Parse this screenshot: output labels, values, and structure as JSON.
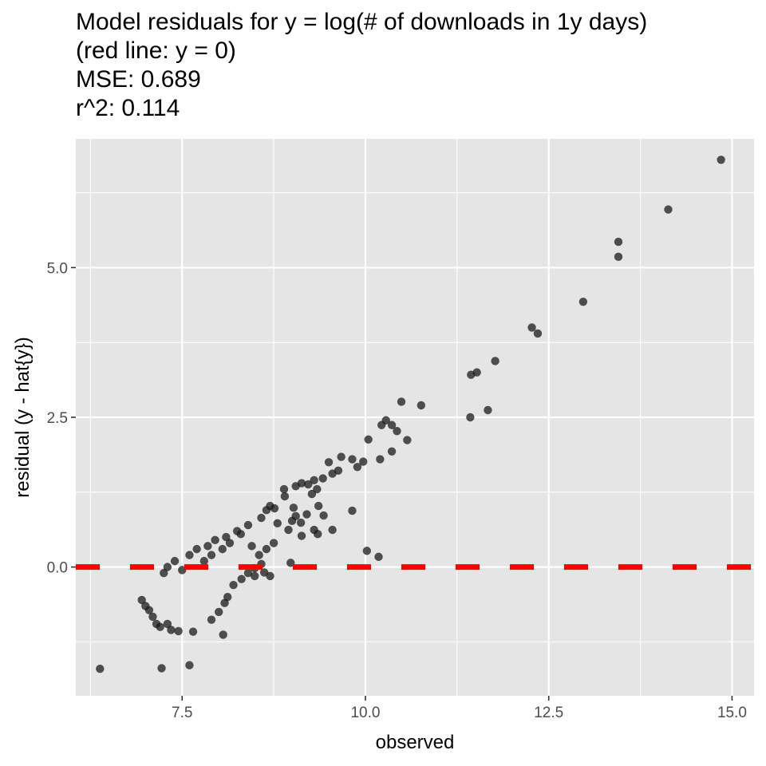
{
  "chart_data": {
    "type": "scatter",
    "title_lines": [
      "Model residuals for y = log(# of downloads in 1y days)",
      "(red line: y = 0)",
      "MSE: 0.689",
      "r^2: 0.114"
    ],
    "xlabel": "observed",
    "ylabel": "residual (y - hat{y})",
    "xlim": [
      6.05,
      15.3
    ],
    "ylim": [
      -2.15,
      7.15
    ],
    "x_ticks": [
      7.5,
      10.0,
      12.5,
      15.0
    ],
    "x_tick_labels": [
      "7.5",
      "10.0",
      "12.5",
      "15.0"
    ],
    "y_ticks": [
      0.0,
      2.5,
      5.0
    ],
    "y_tick_labels": [
      "0.0",
      "2.5",
      "5.0"
    ],
    "grid": true,
    "panel_background": "#e5e5e5",
    "grid_color": "#ffffff",
    "point_color": "#1a1a1a",
    "point_opacity": 0.75,
    "reference_line": {
      "y": 0,
      "color": "#ff0000",
      "style": "dashed"
    },
    "points": [
      [
        14.85,
        6.8
      ],
      [
        14.13,
        5.97
      ],
      [
        13.45,
        5.43
      ],
      [
        13.45,
        5.18
      ],
      [
        12.97,
        4.43
      ],
      [
        12.27,
        4.0
      ],
      [
        12.35,
        3.9
      ],
      [
        11.77,
        3.44
      ],
      [
        11.52,
        3.25
      ],
      [
        11.44,
        3.21
      ],
      [
        11.67,
        2.62
      ],
      [
        11.43,
        2.5
      ],
      [
        10.76,
        2.7
      ],
      [
        10.49,
        2.76
      ],
      [
        10.28,
        2.45
      ],
      [
        10.36,
        2.37
      ],
      [
        10.43,
        2.27
      ],
      [
        10.22,
        2.37
      ],
      [
        10.57,
        2.12
      ],
      [
        10.04,
        2.13
      ],
      [
        10.36,
        1.93
      ],
      [
        10.2,
        1.8
      ],
      [
        9.97,
        1.76
      ],
      [
        9.67,
        1.84
      ],
      [
        9.82,
        1.8
      ],
      [
        9.89,
        1.67
      ],
      [
        9.5,
        1.75
      ],
      [
        9.63,
        1.61
      ],
      [
        9.42,
        1.48
      ],
      [
        9.55,
        1.56
      ],
      [
        9.3,
        1.45
      ],
      [
        9.22,
        1.38
      ],
      [
        9.34,
        1.3
      ],
      [
        9.27,
        1.22
      ],
      [
        9.13,
        1.4
      ],
      [
        9.05,
        1.35
      ],
      [
        8.89,
        1.3
      ],
      [
        8.9,
        1.18
      ],
      [
        8.7,
        1.02
      ],
      [
        8.76,
        0.98
      ],
      [
        8.65,
        0.95
      ],
      [
        8.58,
        0.82
      ],
      [
        9.02,
        0.99
      ],
      [
        9.05,
        0.85
      ],
      [
        9.36,
        1.02
      ],
      [
        9.43,
        0.86
      ],
      [
        9.2,
        0.88
      ],
      [
        9.12,
        0.74
      ],
      [
        9.0,
        0.77
      ],
      [
        8.8,
        0.73
      ],
      [
        8.95,
        0.62
      ],
      [
        9.3,
        0.62
      ],
      [
        9.55,
        0.62
      ],
      [
        9.82,
        0.94
      ],
      [
        9.35,
        0.55
      ],
      [
        8.75,
        0.4
      ],
      [
        8.65,
        0.3
      ],
      [
        8.45,
        0.35
      ],
      [
        8.55,
        0.2
      ],
      [
        9.13,
        0.52
      ],
      [
        10.02,
        0.27
      ],
      [
        10.18,
        0.17
      ],
      [
        8.98,
        0.07
      ],
      [
        8.58,
        0.05
      ],
      [
        8.49,
        -0.02
      ],
      [
        8.49,
        -0.15
      ],
      [
        8.62,
        -0.09
      ],
      [
        8.7,
        -0.15
      ],
      [
        8.4,
        -0.1
      ],
      [
        8.31,
        -0.2
      ],
      [
        8.2,
        -0.3
      ],
      [
        8.12,
        -0.5
      ],
      [
        8.08,
        -0.6
      ],
      [
        8.0,
        -0.75
      ],
      [
        7.9,
        -0.88
      ],
      [
        8.06,
        -1.13
      ],
      [
        7.65,
        -1.08
      ],
      [
        7.45,
        -1.07
      ],
      [
        6.38,
        -1.7
      ],
      [
        7.22,
        -1.69
      ],
      [
        7.6,
        -1.64
      ],
      [
        6.95,
        -0.55
      ],
      [
        7.0,
        -0.65
      ],
      [
        7.05,
        -0.72
      ],
      [
        7.1,
        -0.83
      ],
      [
        7.15,
        -0.95
      ],
      [
        7.2,
        -1.0
      ],
      [
        7.3,
        -0.95
      ],
      [
        7.35,
        -1.05
      ],
      [
        7.25,
        -0.1
      ],
      [
        7.3,
        0.0
      ],
      [
        7.4,
        0.1
      ],
      [
        7.6,
        0.2
      ],
      [
        7.7,
        0.3
      ],
      [
        7.85,
        0.35
      ],
      [
        7.95,
        0.45
      ],
      [
        8.1,
        0.5
      ],
      [
        8.25,
        0.6
      ],
      [
        8.4,
        0.7
      ],
      [
        8.3,
        0.55
      ],
      [
        8.15,
        0.4
      ],
      [
        8.05,
        0.3
      ],
      [
        7.9,
        0.2
      ],
      [
        7.8,
        0.1
      ],
      [
        7.5,
        -0.05
      ]
    ]
  }
}
